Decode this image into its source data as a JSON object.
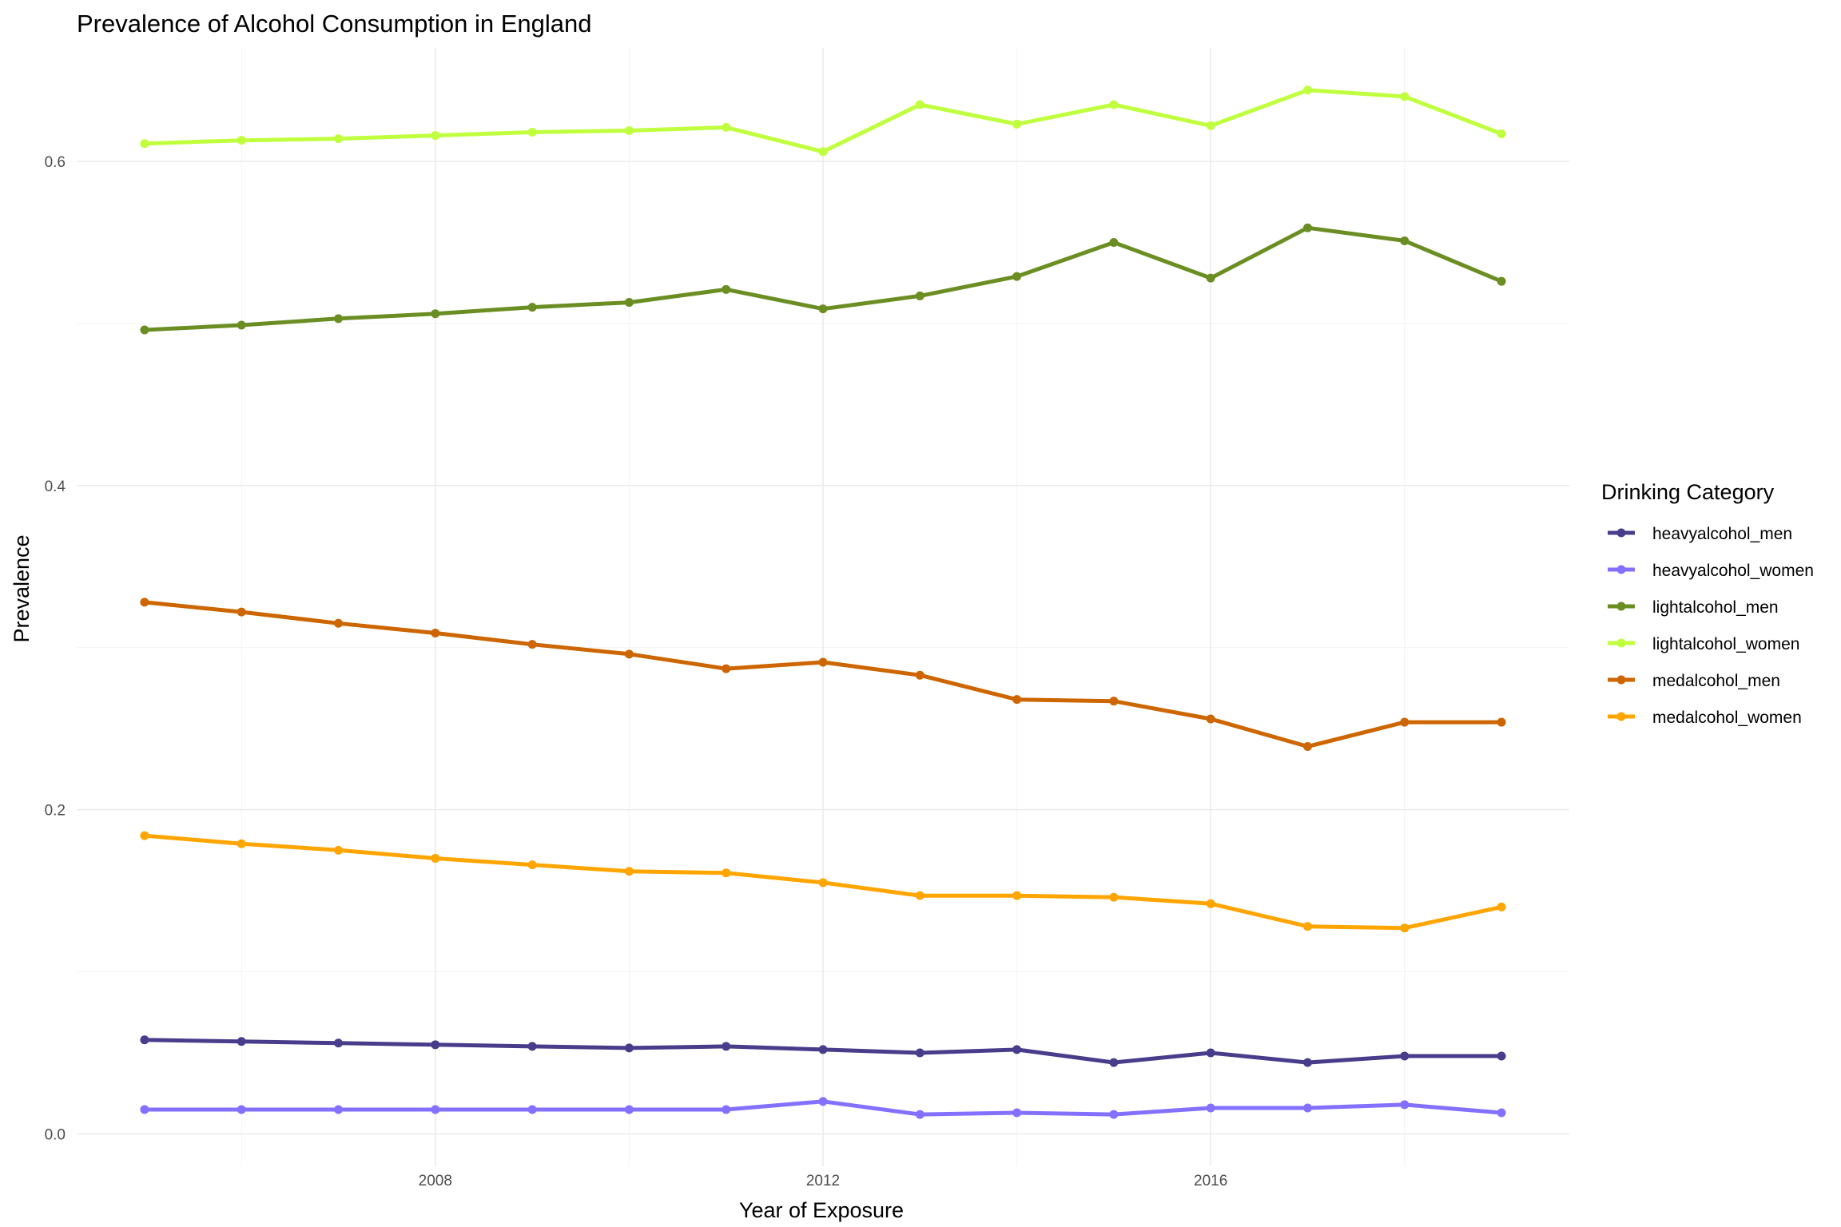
{
  "chart_data": {
    "type": "line",
    "title": "Prevalence of Alcohol Consumption in England",
    "xlabel": "Year of Exposure",
    "ylabel": "Prevalence",
    "xlim": [
      2004.3,
      2019.7
    ],
    "ylim": [
      -0.02,
      0.67
    ],
    "x_ticks": [
      2008,
      2012,
      2016
    ],
    "x_minor_ticks": [
      2006,
      2010,
      2014,
      2018
    ],
    "y_ticks": [
      0.0,
      0.2,
      0.4,
      0.6
    ],
    "y_minor_ticks": [
      0.1,
      0.3,
      0.5
    ],
    "y_tick_labels": [
      "0.0",
      "0.2",
      "0.4",
      "0.6"
    ],
    "x_tick_labels": [
      "2008",
      "2012",
      "2016"
    ],
    "grid": true,
    "legend": {
      "title": "Drinking Category",
      "position": "right"
    },
    "x": [
      2005,
      2006,
      2007,
      2008,
      2009,
      2010,
      2011,
      2012,
      2013,
      2014,
      2015,
      2016,
      2017,
      2018,
      2019
    ],
    "series": [
      {
        "name": "heavyalcohol_men",
        "color": "#483d8b",
        "values": [
          0.058,
          0.057,
          0.056,
          0.055,
          0.054,
          0.053,
          0.054,
          0.052,
          0.05,
          0.052,
          0.044,
          0.05,
          0.044,
          0.048,
          0.048
        ]
      },
      {
        "name": "heavyalcohol_women",
        "color": "#8470ff",
        "values": [
          0.015,
          0.015,
          0.015,
          0.015,
          0.015,
          0.015,
          0.015,
          0.02,
          0.012,
          0.013,
          0.012,
          0.016,
          0.016,
          0.018,
          0.013
        ]
      },
      {
        "name": "lightalcohol_men",
        "color": "#6b8e23",
        "values": [
          0.496,
          0.499,
          0.503,
          0.506,
          0.51,
          0.513,
          0.521,
          0.509,
          0.517,
          0.529,
          0.55,
          0.528,
          0.559,
          0.551,
          0.526
        ]
      },
      {
        "name": "lightalcohol_women",
        "color": "#c0ff3e",
        "values": [
          0.611,
          0.613,
          0.614,
          0.616,
          0.618,
          0.619,
          0.621,
          0.606,
          0.635,
          0.623,
          0.635,
          0.622,
          0.644,
          0.64,
          0.617
        ]
      },
      {
        "name": "medalcohol_men",
        "color": "#cd6600",
        "values": [
          0.328,
          0.322,
          0.315,
          0.309,
          0.302,
          0.296,
          0.287,
          0.291,
          0.283,
          0.268,
          0.267,
          0.256,
          0.239,
          0.254,
          0.254
        ]
      },
      {
        "name": "medalcohol_women",
        "color": "#ffa500",
        "values": [
          0.184,
          0.179,
          0.175,
          0.17,
          0.166,
          0.162,
          0.161,
          0.155,
          0.147,
          0.147,
          0.146,
          0.142,
          0.128,
          0.127,
          0.14
        ]
      }
    ]
  }
}
